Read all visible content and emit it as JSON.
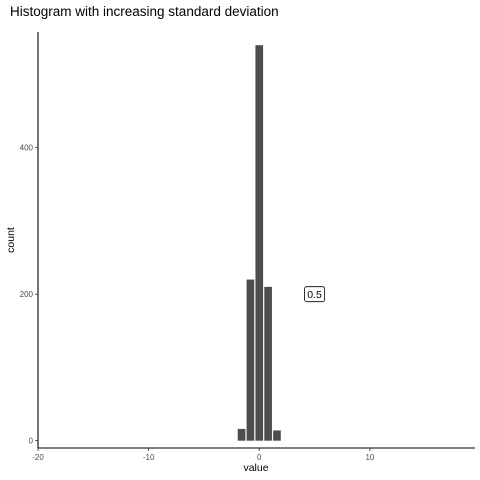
{
  "chart_data": {
    "type": "bar",
    "title": "Histogram with increasing standard deviation",
    "xlabel": "value",
    "ylabel": "count",
    "xlim": [
      -20,
      19.5
    ],
    "ylim": [
      -10,
      558
    ],
    "x_ticks": [
      -20,
      -10,
      0,
      10
    ],
    "y_ticks": [
      0,
      200,
      400
    ],
    "bin_width": 0.8,
    "bar_color": "#4d4d4d",
    "grid": false,
    "bins": [
      {
        "x": -1.6,
        "count": 16
      },
      {
        "x": -0.8,
        "count": 220
      },
      {
        "x": 0.0,
        "count": 540
      },
      {
        "x": 0.8,
        "count": 210
      },
      {
        "x": 1.6,
        "count": 14
      }
    ],
    "annotation": {
      "label": "0.5",
      "x": 5,
      "y": 200
    }
  }
}
